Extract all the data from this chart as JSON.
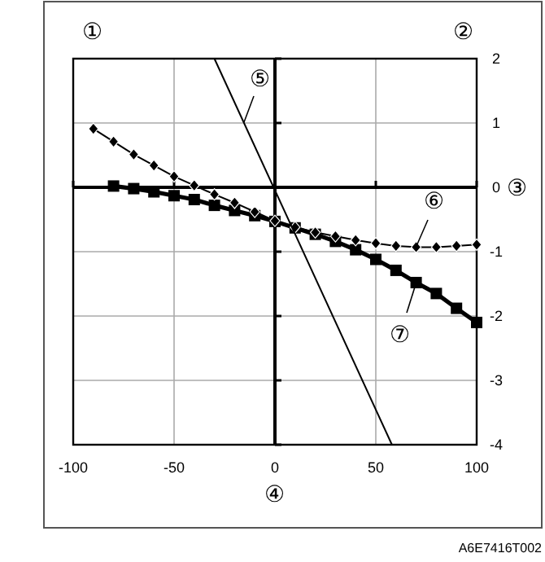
{
  "chart_data": {
    "type": "line",
    "xlim": [
      -100,
      100
    ],
    "ylim": [
      -4,
      2
    ],
    "xticks": [
      -100,
      -50,
      0,
      50,
      100
    ],
    "yticks": [
      -4,
      -3,
      -2,
      -1,
      0,
      1,
      2
    ],
    "grid": true,
    "series": [
      {
        "color": "#000000",
        "marker": "none",
        "line_style": "solid",
        "x": [
          -30,
          58
        ],
        "values": [
          2,
          -4
        ]
      },
      {
        "color": "#000000",
        "marker": "diamond",
        "line_style": "solid",
        "x": [
          -90,
          -80,
          -70,
          -60,
          -50,
          -40,
          -30,
          -20,
          -10,
          0,
          10,
          20,
          30,
          40,
          50,
          60,
          70,
          80,
          90,
          100
        ],
        "values": [
          0.91,
          0.71,
          0.51,
          0.34,
          0.17,
          0.03,
          -0.11,
          -0.24,
          -0.38,
          -0.52,
          -0.62,
          -0.7,
          -0.76,
          -0.82,
          -0.87,
          -0.91,
          -0.93,
          -0.93,
          -0.91,
          -0.89
        ]
      },
      {
        "color": "#000000",
        "marker": "square",
        "line_style": "solid",
        "x": [
          -80,
          -70,
          -60,
          -50,
          -40,
          -30,
          -20,
          -10,
          0,
          10,
          20,
          30,
          40,
          50,
          60,
          70,
          80,
          90,
          100
        ],
        "values": [
          0.02,
          -0.02,
          -0.07,
          -0.13,
          -0.19,
          -0.28,
          -0.36,
          -0.44,
          -0.53,
          -0.63,
          -0.73,
          -0.84,
          -0.97,
          -1.12,
          -1.29,
          -1.48,
          -1.65,
          -1.88,
          -2.1
        ]
      }
    ],
    "annotations": [
      "①",
      "②",
      "③",
      "④",
      "⑤",
      "⑥",
      "⑦",
      "A6E7416T002"
    ]
  }
}
